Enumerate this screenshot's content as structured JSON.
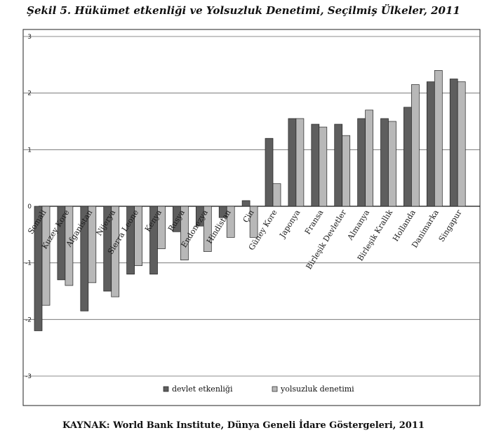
{
  "title": "Şekil 5. Hükümet etkenliği ve Yolsuzluk Denetimi, Seçilmiş Ülkeler, 2011",
  "source": "KAYNAK: World Bank Institute, Dünya Geneli İdare Göstergeleri, 2011",
  "chart_data": {
    "type": "bar",
    "title": "Şekil 5. Hükümet etkenliği ve Yolsuzluk Denetimi, Seçilmiş Ülkeler, 2011",
    "xlabel": "",
    "ylabel": "",
    "ylim": [
      -3,
      3
    ],
    "yticks": [
      "3",
      "2",
      "1",
      "0",
      "-1",
      "-2",
      "-3"
    ],
    "grid": true,
    "legend": "bottom",
    "categories": [
      "Somali",
      "Kuzey Kore",
      "Afganistan",
      "Nijerya",
      "Sierra Leone",
      "Kenya",
      "Rusya",
      "Endonezya",
      "Hindistan",
      "Çin",
      "Güney Kore",
      "Japonya",
      "Fransa",
      "Birleşik Devletler",
      "Almanya",
      "Birleşik Krallık",
      "Hollanda",
      "Danimarka",
      "Singapur"
    ],
    "series": [
      {
        "name": "devlet etkenliği",
        "color": "#5e5e5e",
        "values": [
          -2.2,
          -1.3,
          -1.85,
          -1.5,
          -1.2,
          -1.2,
          -0.45,
          -0.35,
          -0.2,
          0.1,
          1.2,
          1.55,
          1.45,
          1.45,
          1.55,
          1.55,
          1.75,
          2.2,
          2.25
        ]
      },
      {
        "name": "yolsuzluk denetimi",
        "color": "#b8b8b8",
        "values": [
          -1.75,
          -1.4,
          -1.35,
          -1.6,
          -1.05,
          -0.75,
          -0.95,
          -0.8,
          -0.55,
          -0.55,
          0.4,
          1.55,
          1.4,
          1.25,
          1.7,
          1.5,
          2.15,
          2.4,
          2.2
        ]
      }
    ]
  }
}
